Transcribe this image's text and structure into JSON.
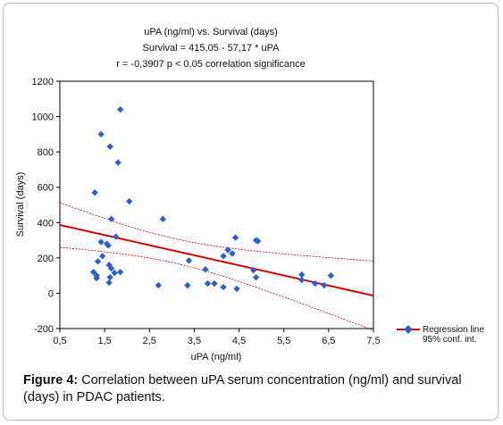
{
  "chart_data": {
    "type": "scatter",
    "title_lines": [
      "uPA (ng/ml) vs. Survival (days)",
      "Survival = 415,05 - 57,17 * uPA",
      "r = -0,3907   p < 0,05  correlation significance"
    ],
    "xlabel": "uPA (ng/ml)",
    "ylabel": "Survival (days)",
    "xlim": [
      0.5,
      7.5
    ],
    "ylim": [
      -200,
      1200
    ],
    "x_ticks": [
      0.5,
      1.5,
      2.5,
      3.5,
      4.5,
      5.5,
      6.5,
      7.5
    ],
    "x_tick_labels": [
      "0,5",
      "1,5",
      "2,5",
      "3,5",
      "4,5",
      "5,5",
      "6,5",
      "7,5"
    ],
    "y_ticks": [
      -200,
      0,
      200,
      400,
      600,
      800,
      1000,
      1200
    ],
    "y_tick_labels": [
      "-200",
      "0",
      "200",
      "400",
      "600",
      "800",
      "1000",
      "1200"
    ],
    "points": [
      {
        "x": 1.28,
        "y": 570
      },
      {
        "x": 1.42,
        "y": 900
      },
      {
        "x": 1.62,
        "y": 830
      },
      {
        "x": 1.85,
        "y": 1040
      },
      {
        "x": 1.8,
        "y": 740
      },
      {
        "x": 2.05,
        "y": 520
      },
      {
        "x": 1.65,
        "y": 420
      },
      {
        "x": 1.75,
        "y": 320
      },
      {
        "x": 1.42,
        "y": 290
      },
      {
        "x": 1.55,
        "y": 280
      },
      {
        "x": 1.58,
        "y": 270
      },
      {
        "x": 1.45,
        "y": 210
      },
      {
        "x": 1.35,
        "y": 180
      },
      {
        "x": 1.6,
        "y": 160
      },
      {
        "x": 1.65,
        "y": 140
      },
      {
        "x": 1.25,
        "y": 120
      },
      {
        "x": 1.32,
        "y": 100
      },
      {
        "x": 1.32,
        "y": 85
      },
      {
        "x": 1.72,
        "y": 115
      },
      {
        "x": 1.85,
        "y": 120
      },
      {
        "x": 1.62,
        "y": 90
      },
      {
        "x": 1.6,
        "y": 60
      },
      {
        "x": 2.8,
        "y": 420
      },
      {
        "x": 2.7,
        "y": 45
      },
      {
        "x": 3.35,
        "y": 45
      },
      {
        "x": 3.38,
        "y": 185
      },
      {
        "x": 3.75,
        "y": 135
      },
      {
        "x": 3.8,
        "y": 55
      },
      {
        "x": 3.95,
        "y": 55
      },
      {
        "x": 4.15,
        "y": 35
      },
      {
        "x": 4.15,
        "y": 210
      },
      {
        "x": 4.25,
        "y": 245
      },
      {
        "x": 4.35,
        "y": 225
      },
      {
        "x": 4.42,
        "y": 315
      },
      {
        "x": 4.45,
        "y": 25
      },
      {
        "x": 4.82,
        "y": 130
      },
      {
        "x": 4.88,
        "y": 90
      },
      {
        "x": 4.88,
        "y": 300
      },
      {
        "x": 4.92,
        "y": 295
      },
      {
        "x": 5.9,
        "y": 105
      },
      {
        "x": 5.9,
        "y": 75
      },
      {
        "x": 6.2,
        "y": 55
      },
      {
        "x": 6.4,
        "y": 45
      },
      {
        "x": 6.55,
        "y": 100
      }
    ],
    "regression": {
      "intercept": 415.05,
      "slope": -57.17
    },
    "legend": {
      "placement": "right",
      "entries": [
        "Regression line",
        "95% conf. int."
      ]
    },
    "colors": {
      "points": "#2a5fd0",
      "regression": "#d40000",
      "confidence": "#d40000"
    },
    "grid": false
  },
  "caption": {
    "label": "Figure 4:",
    "text": " Correlation between uPA serum concentration (ng/ml) and survival (days) in PDAC patients."
  }
}
